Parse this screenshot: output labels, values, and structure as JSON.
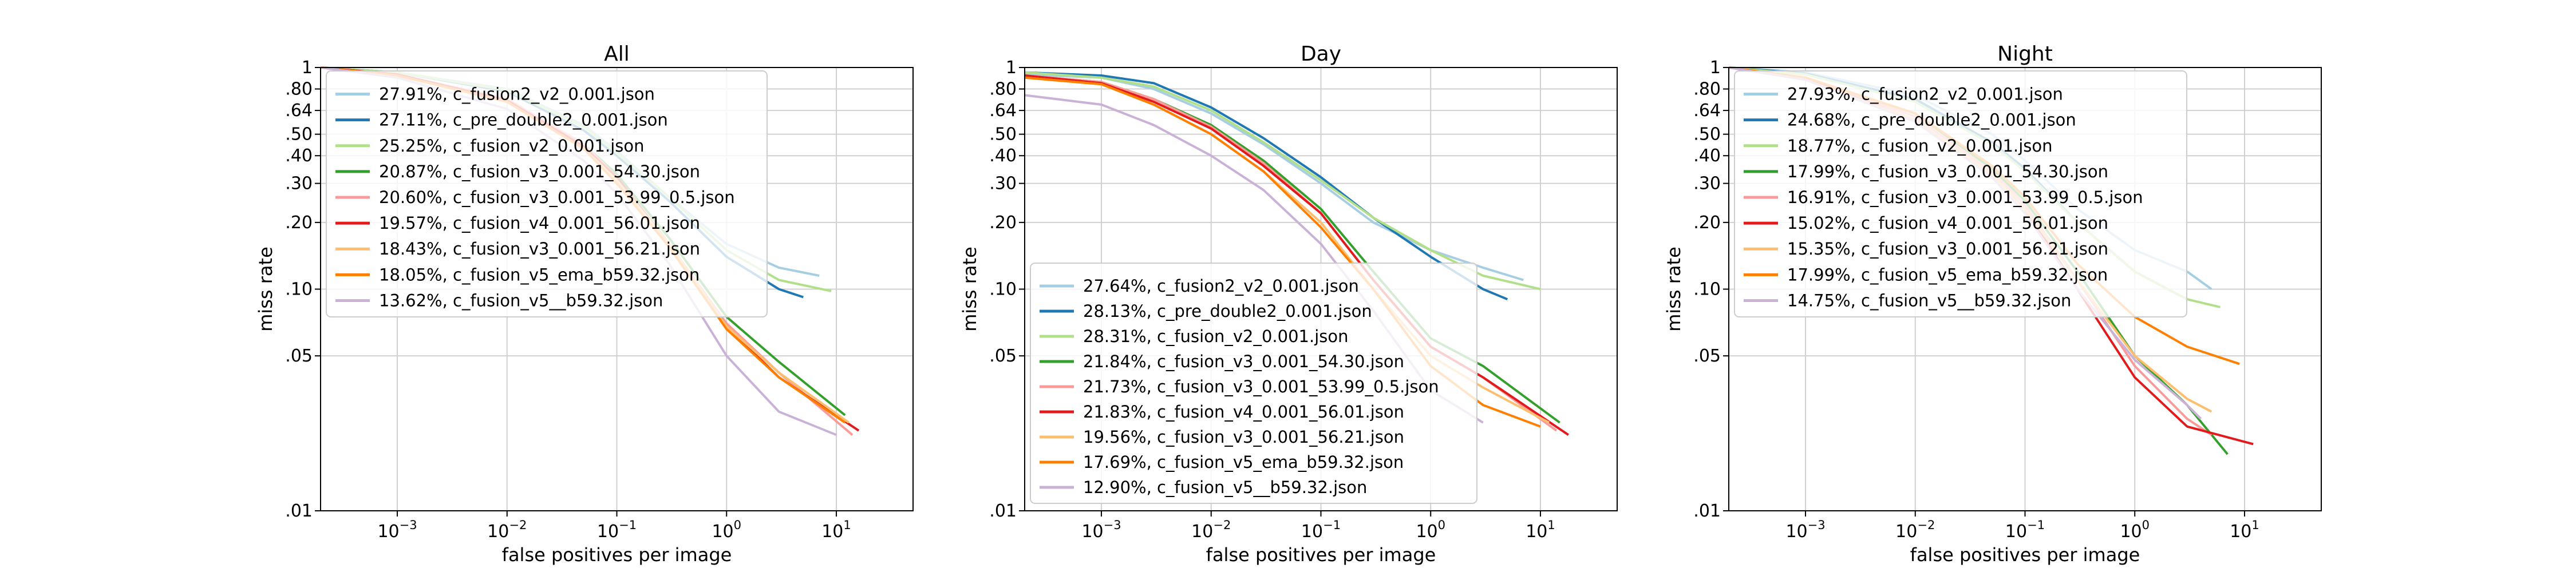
{
  "chart_data": [
    {
      "type": "line",
      "title": "All",
      "xlabel": "false positives per image",
      "ylabel": "miss rate",
      "x_scale": "log",
      "y_scale": "log",
      "xlim": [
        0.0002,
        50
      ],
      "ylim": [
        0.01,
        1
      ],
      "grid": true,
      "legend_position": "upper-left",
      "x_ticks": [
        {
          "v": 0.001,
          "base": "10",
          "exp": "−3"
        },
        {
          "v": 0.01,
          "base": "10",
          "exp": "−2"
        },
        {
          "v": 0.1,
          "base": "10",
          "exp": "−1"
        },
        {
          "v": 1,
          "base": "10",
          "exp": "0"
        },
        {
          "v": 10,
          "base": "10",
          "exp": "1"
        }
      ],
      "y_ticks": [
        {
          "v": 1,
          "label": "1"
        },
        {
          "v": 0.8,
          "label": ".80"
        },
        {
          "v": 0.64,
          "label": ".64"
        },
        {
          "v": 0.5,
          "label": ".50"
        },
        {
          "v": 0.4,
          "label": ".40"
        },
        {
          "v": 0.3,
          "label": ".30"
        },
        {
          "v": 0.2,
          "label": ".20"
        },
        {
          "v": 0.1,
          "label": ".10"
        },
        {
          "v": 0.05,
          "label": ".05"
        },
        {
          "v": 0.01,
          "label": ".01"
        }
      ],
      "series": [
        {
          "name": "27.91%, c_fusion2_v2_0.001.json",
          "color": "#a6cee3",
          "x": [
            0.0002,
            0.001,
            0.01,
            0.05,
            0.1,
            0.3,
            1,
            3,
            7
          ],
          "y": [
            1,
            0.95,
            0.8,
            0.55,
            0.42,
            0.26,
            0.16,
            0.125,
            0.115
          ]
        },
        {
          "name": "27.11%, c_pre_double2_0.001.json",
          "color": "#1f78b4",
          "x": [
            0.0002,
            0.001,
            0.01,
            0.05,
            0.1,
            0.3,
            1,
            3,
            5
          ],
          "y": [
            1,
            0.95,
            0.78,
            0.52,
            0.4,
            0.25,
            0.14,
            0.1,
            0.092
          ]
        },
        {
          "name": "25.25%, c_fusion_v2_0.001.json",
          "color": "#b2df8a",
          "x": [
            0.0002,
            0.001,
            0.01,
            0.05,
            0.1,
            0.3,
            1,
            3,
            9
          ],
          "y": [
            1,
            0.95,
            0.79,
            0.54,
            0.41,
            0.26,
            0.15,
            0.11,
            0.098
          ]
        },
        {
          "name": "20.87%, c_fusion_v3_0.001_54.30.json",
          "color": "#33a02c",
          "x": [
            0.0002,
            0.001,
            0.01,
            0.05,
            0.1,
            0.3,
            1,
            3,
            12
          ],
          "y": [
            1,
            0.93,
            0.72,
            0.45,
            0.33,
            0.17,
            0.075,
            0.047,
            0.027
          ]
        },
        {
          "name": "20.60%, c_fusion_v3_0.001_53.99_0.5.json",
          "color": "#fb9a99",
          "x": [
            0.0002,
            0.001,
            0.01,
            0.05,
            0.1,
            0.3,
            1,
            3,
            14
          ],
          "y": [
            1,
            0.93,
            0.72,
            0.45,
            0.32,
            0.16,
            0.07,
            0.042,
            0.022
          ]
        },
        {
          "name": "19.57%, c_fusion_v4_0.001_56.01.json",
          "color": "#e31a1c",
          "x": [
            0.0002,
            0.001,
            0.01,
            0.05,
            0.1,
            0.3,
            1,
            3,
            16
          ],
          "y": [
            1,
            0.93,
            0.71,
            0.44,
            0.32,
            0.16,
            0.068,
            0.04,
            0.023
          ]
        },
        {
          "name": "18.43%, c_fusion_v3_0.001_56.21.json",
          "color": "#fdbf6f",
          "x": [
            0.0002,
            0.001,
            0.01,
            0.05,
            0.1,
            0.3,
            1,
            3,
            13
          ],
          "y": [
            1,
            0.92,
            0.7,
            0.43,
            0.31,
            0.16,
            0.068,
            0.042,
            0.025
          ]
        },
        {
          "name": "18.05%, c_fusion_v5_ema_b59.32.json",
          "color": "#ff7f00",
          "x": [
            0.0002,
            0.001,
            0.01,
            0.05,
            0.1,
            0.3,
            1,
            3,
            12
          ],
          "y": [
            1,
            0.92,
            0.7,
            0.43,
            0.3,
            0.155,
            0.066,
            0.04,
            0.025
          ]
        },
        {
          "name": "13.62%, c_fusion_v5__b59.32.json",
          "color": "#cab2d6",
          "x": [
            0.0002,
            0.001,
            0.01,
            0.05,
            0.1,
            0.3,
            1,
            3,
            10
          ],
          "y": [
            1,
            0.9,
            0.65,
            0.38,
            0.27,
            0.13,
            0.05,
            0.028,
            0.022
          ]
        }
      ]
    },
    {
      "type": "line",
      "title": "Day",
      "xlabel": "false positives per image",
      "ylabel": "miss rate",
      "x_scale": "log",
      "y_scale": "log",
      "xlim": [
        0.0002,
        50
      ],
      "ylim": [
        0.01,
        1
      ],
      "grid": true,
      "legend_position": "lower-left",
      "x_ticks": [
        {
          "v": 0.001,
          "base": "10",
          "exp": "−3"
        },
        {
          "v": 0.01,
          "base": "10",
          "exp": "−2"
        },
        {
          "v": 0.1,
          "base": "10",
          "exp": "−1"
        },
        {
          "v": 1,
          "base": "10",
          "exp": "0"
        },
        {
          "v": 10,
          "base": "10",
          "exp": "1"
        }
      ],
      "y_ticks": [
        {
          "v": 1,
          "label": "1"
        },
        {
          "v": 0.8,
          "label": ".80"
        },
        {
          "v": 0.64,
          "label": ".64"
        },
        {
          "v": 0.5,
          "label": ".50"
        },
        {
          "v": 0.4,
          "label": ".40"
        },
        {
          "v": 0.3,
          "label": ".30"
        },
        {
          "v": 0.2,
          "label": ".20"
        },
        {
          "v": 0.1,
          "label": ".10"
        },
        {
          "v": 0.05,
          "label": ".05"
        },
        {
          "v": 0.01,
          "label": ".01"
        }
      ],
      "series": [
        {
          "name": "27.64%, c_fusion2_v2_0.001.json",
          "color": "#a6cee3",
          "x": [
            0.0002,
            0.001,
            0.003,
            0.01,
            0.03,
            0.1,
            0.3,
            1,
            3,
            7
          ],
          "y": [
            0.93,
            0.9,
            0.8,
            0.62,
            0.45,
            0.3,
            0.2,
            0.15,
            0.125,
            0.11
          ]
        },
        {
          "name": "28.13%, c_pre_double2_0.001.json",
          "color": "#1f78b4",
          "x": [
            0.0002,
            0.001,
            0.003,
            0.01,
            0.03,
            0.1,
            0.3,
            1,
            3,
            5
          ],
          "y": [
            0.95,
            0.92,
            0.85,
            0.66,
            0.48,
            0.32,
            0.21,
            0.14,
            0.1,
            0.09
          ]
        },
        {
          "name": "28.31%, c_fusion_v2_0.001.json",
          "color": "#b2df8a",
          "x": [
            0.0002,
            0.001,
            0.003,
            0.01,
            0.03,
            0.1,
            0.3,
            1,
            3,
            10
          ],
          "y": [
            0.95,
            0.9,
            0.82,
            0.64,
            0.46,
            0.31,
            0.21,
            0.15,
            0.115,
            0.1
          ]
        },
        {
          "name": "21.84%, c_fusion_v3_0.001_54.30.json",
          "color": "#33a02c",
          "x": [
            0.0002,
            0.001,
            0.003,
            0.01,
            0.03,
            0.1,
            0.3,
            1,
            3,
            15
          ],
          "y": [
            0.92,
            0.86,
            0.72,
            0.55,
            0.38,
            0.23,
            0.12,
            0.06,
            0.045,
            0.025
          ]
        },
        {
          "name": "21.73%, c_fusion_v3_0.001_53.99_0.5.json",
          "color": "#fb9a99",
          "x": [
            0.0002,
            0.001,
            0.003,
            0.01,
            0.03,
            0.1,
            0.3,
            1,
            3,
            14
          ],
          "y": [
            0.92,
            0.86,
            0.72,
            0.54,
            0.37,
            0.22,
            0.11,
            0.055,
            0.04,
            0.023
          ]
        },
        {
          "name": "21.83%, c_fusion_v4_0.001_56.01.json",
          "color": "#e31a1c",
          "x": [
            0.0002,
            0.001,
            0.003,
            0.01,
            0.03,
            0.1,
            0.3,
            1,
            3,
            18
          ],
          "y": [
            0.92,
            0.85,
            0.7,
            0.53,
            0.36,
            0.22,
            0.11,
            0.055,
            0.04,
            0.022
          ]
        },
        {
          "name": "19.56%, c_fusion_v3_0.001_56.21.json",
          "color": "#fdbf6f",
          "x": [
            0.0002,
            0.001,
            0.003,
            0.01,
            0.03,
            0.1,
            0.3,
            1,
            3,
            12
          ],
          "y": [
            0.9,
            0.84,
            0.68,
            0.5,
            0.34,
            0.2,
            0.1,
            0.05,
            0.036,
            0.025
          ]
        },
        {
          "name": "17.69%, c_fusion_v5_ema_b59.32.json",
          "color": "#ff7f00",
          "x": [
            0.0002,
            0.001,
            0.003,
            0.01,
            0.03,
            0.1,
            0.3,
            1,
            3,
            10
          ],
          "y": [
            0.9,
            0.84,
            0.68,
            0.5,
            0.34,
            0.19,
            0.1,
            0.045,
            0.03,
            0.024
          ]
        },
        {
          "name": "12.90%, c_fusion_v5__b59.32.json",
          "color": "#cab2d6",
          "x": [
            0.0002,
            0.001,
            0.003,
            0.01,
            0.03,
            0.1,
            0.3,
            1,
            3
          ],
          "y": [
            0.75,
            0.68,
            0.55,
            0.4,
            0.28,
            0.16,
            0.08,
            0.035,
            0.025
          ]
        }
      ]
    },
    {
      "type": "line",
      "title": "Night",
      "xlabel": "false positives per image",
      "ylabel": "miss rate",
      "x_scale": "log",
      "y_scale": "log",
      "xlim": [
        0.0002,
        50
      ],
      "ylim": [
        0.01,
        1
      ],
      "grid": true,
      "legend_position": "upper-left",
      "x_ticks": [
        {
          "v": 0.001,
          "base": "10",
          "exp": "−3"
        },
        {
          "v": 0.01,
          "base": "10",
          "exp": "−2"
        },
        {
          "v": 0.1,
          "base": "10",
          "exp": "−1"
        },
        {
          "v": 1,
          "base": "10",
          "exp": "0"
        },
        {
          "v": 10,
          "base": "10",
          "exp": "1"
        }
      ],
      "y_ticks": [
        {
          "v": 1,
          "label": "1"
        },
        {
          "v": 0.8,
          "label": ".80"
        },
        {
          "v": 0.64,
          "label": ".64"
        },
        {
          "v": 0.5,
          "label": ".50"
        },
        {
          "v": 0.4,
          "label": ".40"
        },
        {
          "v": 0.3,
          "label": ".30"
        },
        {
          "v": 0.2,
          "label": ".20"
        },
        {
          "v": 0.1,
          "label": ".10"
        },
        {
          "v": 0.05,
          "label": ".05"
        },
        {
          "v": 0.01,
          "label": ".01"
        }
      ],
      "series": [
        {
          "name": "27.93%, c_fusion2_v2_0.001.json",
          "color": "#a6cee3",
          "x": [
            0.0002,
            0.001,
            0.01,
            0.05,
            0.1,
            0.3,
            1,
            3,
            5
          ],
          "y": [
            1,
            0.95,
            0.75,
            0.5,
            0.38,
            0.23,
            0.15,
            0.12,
            0.1
          ]
        },
        {
          "name": "24.68%, c_pre_double2_0.001.json",
          "color": "#1f78b4",
          "x": [
            0.0002,
            0.001,
            0.01,
            0.05,
            0.1,
            0.3,
            1,
            2,
            3
          ],
          "y": [
            1,
            0.94,
            0.72,
            0.46,
            0.35,
            0.2,
            0.12,
            0.1,
            0.09
          ]
        },
        {
          "name": "18.77%, c_fusion_v2_0.001.json",
          "color": "#b2df8a",
          "x": [
            0.0002,
            0.001,
            0.01,
            0.05,
            0.1,
            0.3,
            1,
            3,
            6
          ],
          "y": [
            1,
            0.93,
            0.7,
            0.45,
            0.34,
            0.2,
            0.12,
            0.09,
            0.083
          ]
        },
        {
          "name": "17.99%, c_fusion_v3_0.001_54.30.json",
          "color": "#33a02c",
          "x": [
            0.0002,
            0.001,
            0.01,
            0.05,
            0.1,
            0.3,
            1,
            3,
            7
          ],
          "y": [
            1,
            0.9,
            0.62,
            0.35,
            0.25,
            0.12,
            0.05,
            0.03,
            0.018
          ]
        },
        {
          "name": "16.91%, c_fusion_v3_0.001_53.99_0.5.json",
          "color": "#fb9a99",
          "x": [
            0.0002,
            0.001,
            0.01,
            0.05,
            0.1,
            0.3,
            1,
            3,
            5
          ],
          "y": [
            1,
            0.9,
            0.6,
            0.34,
            0.24,
            0.11,
            0.045,
            0.026,
            0.022
          ]
        },
        {
          "name": "15.02%, c_fusion_v4_0.001_56.01.json",
          "color": "#e31a1c",
          "x": [
            0.0002,
            0.001,
            0.01,
            0.05,
            0.1,
            0.3,
            1,
            3,
            12
          ],
          "y": [
            1,
            0.89,
            0.58,
            0.33,
            0.23,
            0.1,
            0.04,
            0.024,
            0.02
          ]
        },
        {
          "name": "15.35%, c_fusion_v3_0.001_56.21.json",
          "color": "#fdbf6f",
          "x": [
            0.0002,
            0.001,
            0.01,
            0.05,
            0.1,
            0.3,
            1,
            3,
            5
          ],
          "y": [
            1,
            0.88,
            0.58,
            0.33,
            0.23,
            0.11,
            0.05,
            0.032,
            0.028
          ]
        },
        {
          "name": "17.99%, c_fusion_v5_ema_b59.32.json",
          "color": "#ff7f00",
          "x": [
            0.0002,
            0.001,
            0.01,
            0.05,
            0.1,
            0.3,
            1,
            3,
            9
          ],
          "y": [
            1,
            0.9,
            0.62,
            0.36,
            0.26,
            0.13,
            0.075,
            0.055,
            0.046
          ]
        },
        {
          "name": "14.75%, c_fusion_v5__b59.32.json",
          "color": "#cab2d6",
          "x": [
            0.0002,
            0.001,
            0.01,
            0.05,
            0.1,
            0.3,
            1,
            3,
            4
          ],
          "y": [
            1,
            0.88,
            0.57,
            0.32,
            0.22,
            0.1,
            0.048,
            0.03,
            0.026
          ]
        }
      ]
    }
  ]
}
